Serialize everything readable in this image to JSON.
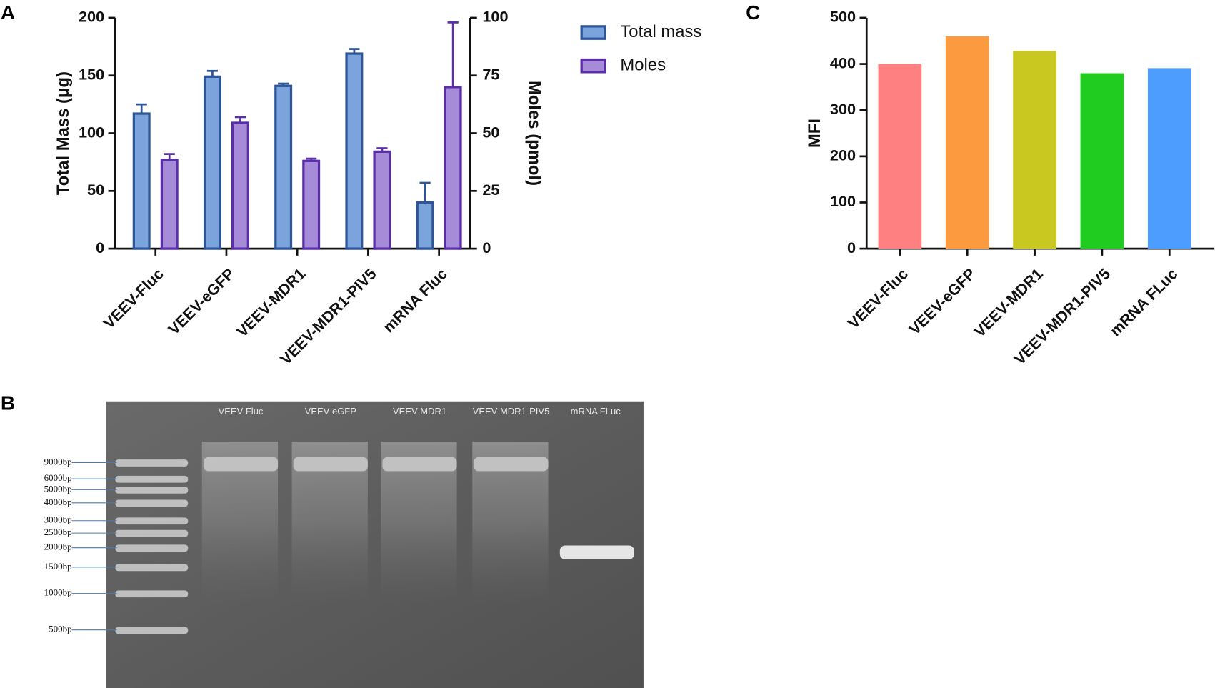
{
  "chart_data": [
    {
      "type": "bar",
      "panel_label": "A",
      "categories": [
        "VEEV-Fluc",
        "VEEV-eGFP",
        "VEEV-MDR1",
        "VEEV-MDR1-PIV5",
        "mRNA Fluc"
      ],
      "ylabel": "Total Mass (μg)",
      "y2label": "Moles (pmol)",
      "ylim": [
        0,
        200
      ],
      "yticks": [
        0,
        50,
        100,
        150,
        200
      ],
      "y2lim": [
        0,
        100
      ],
      "y2ticks": [
        0,
        25,
        50,
        75,
        100
      ],
      "legend": "right",
      "series": [
        {
          "name": "Total mass",
          "color": "#7ba3dc",
          "edge_color": "#2e5597",
          "values": [
            117,
            149,
            141,
            169,
            40
          ],
          "errors": [
            8,
            5,
            2,
            4,
            17
          ]
        },
        {
          "name": "Moles",
          "color": "#a68bd9",
          "edge_color": "#5a2ea6",
          "axis": "y2",
          "values": [
            38.5,
            54.5,
            38,
            42,
            70
          ],
          "errors": [
            2.5,
            2.5,
            1,
            1.5,
            28
          ]
        }
      ]
    },
    {
      "type": "bar",
      "panel_label": "C",
      "categories": [
        "VEEV-Fluc",
        "VEEV-eGFP",
        "VEEV-MDR1",
        "VEEV-MDR1-PIV5",
        "mRNA FLuc"
      ],
      "ylabel": "MFI",
      "ylim": [
        0,
        500
      ],
      "yticks": [
        0,
        100,
        200,
        300,
        400,
        500
      ],
      "values": [
        400,
        460,
        428,
        380,
        391
      ],
      "colors": [
        "#ff8080",
        "#fb9a3e",
        "#c9c820",
        "#1fcc1f",
        "#4d9cff"
      ]
    }
  ],
  "gel": {
    "panel_label": "B",
    "lanes": [
      "VEEV-Fluc",
      "VEEV-eGFP",
      "VEEV-MDR1",
      "VEEV-MDR1-PIV5",
      "mRNA FLuc"
    ],
    "ladder": [
      "9000bp",
      "6000bp",
      "5000bp",
      "4000bp",
      "3000bp",
      "2500bp",
      "2000bp",
      "1500bp",
      "1000bp",
      "500bp"
    ]
  }
}
